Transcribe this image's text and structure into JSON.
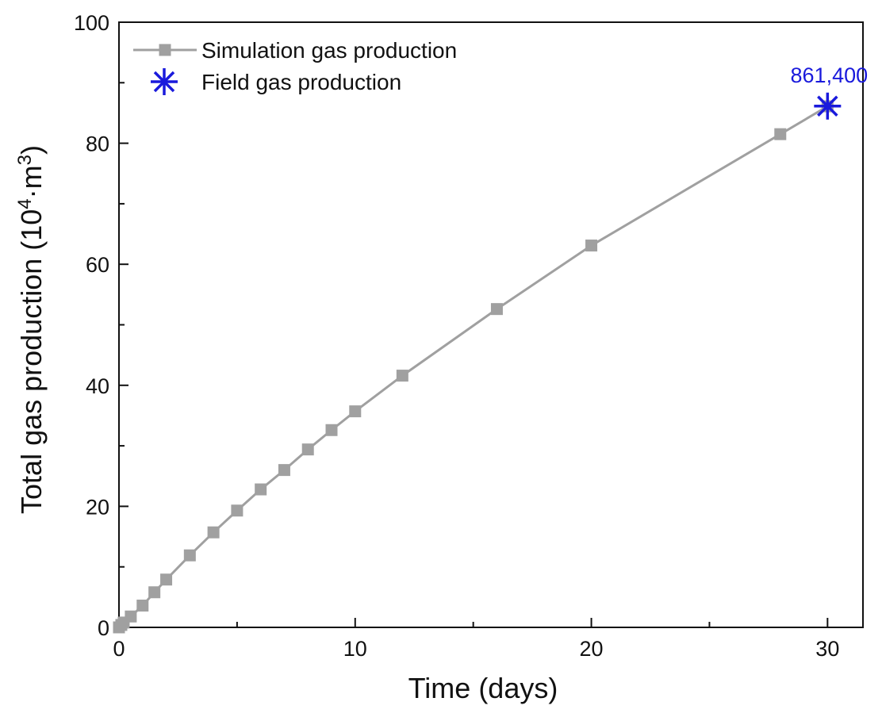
{
  "chart_data": {
    "type": "line",
    "xlabel": "Time (days)",
    "ylabel": {
      "prefix": "Total gas production (10",
      "sup1": "4",
      "mid": "·m",
      "sup2": "3",
      "suffix": ")"
    },
    "xlim": [
      0,
      31.5
    ],
    "ylim": [
      0,
      100
    ],
    "xticks": [
      0,
      10,
      20,
      30
    ],
    "yticks": [
      0,
      20,
      40,
      60,
      80,
      100
    ],
    "x_minor_step": 5,
    "y_minor_step": 10,
    "grid": false,
    "legend_position": "top-left",
    "series": [
      {
        "name": "Simulation gas production",
        "color": "#a0a0a0",
        "marker": "square",
        "x": [
          0,
          0.1,
          0.2,
          0.5,
          1,
          1.5,
          2,
          3,
          4,
          5,
          6,
          7,
          8,
          9,
          10,
          12,
          16,
          20,
          28,
          30
        ],
        "y": [
          0,
          0.4,
          0.8,
          1.8,
          3.6,
          5.8,
          7.9,
          11.9,
          15.7,
          19.3,
          22.8,
          26.0,
          29.4,
          32.6,
          35.7,
          41.6,
          52.6,
          63.1,
          81.5,
          86.1
        ]
      },
      {
        "name": "Field gas production",
        "color": "#1a1adc",
        "marker": "asterisk",
        "x": [
          30
        ],
        "y": [
          86.14
        ]
      }
    ],
    "annotations": [
      {
        "text": "861,400",
        "x": 30,
        "y": 86.14,
        "color": "#1a1adc"
      }
    ]
  }
}
